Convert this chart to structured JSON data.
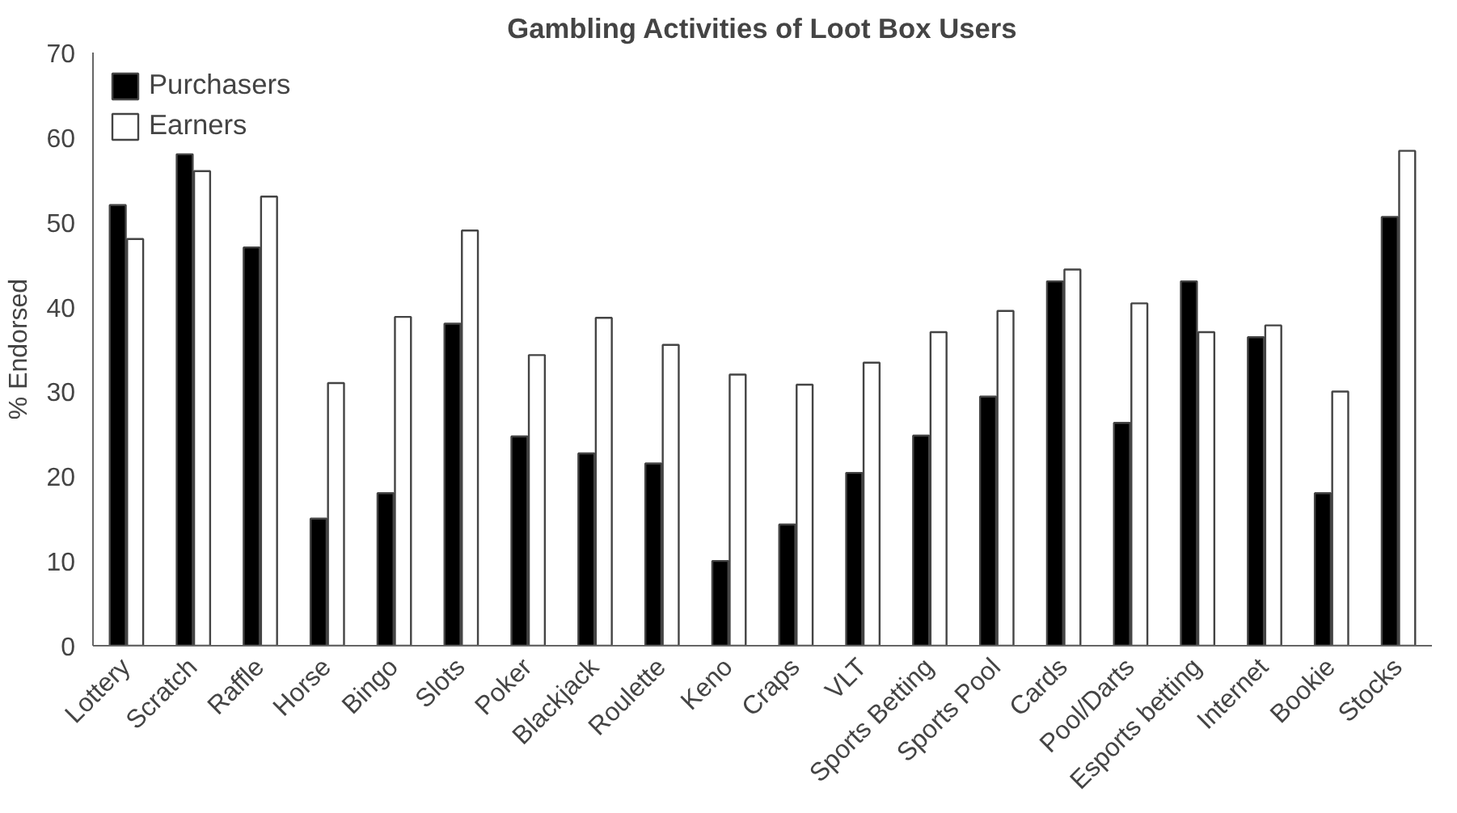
{
  "chart_data": {
    "type": "bar",
    "title": "Gambling Activities of Loot Box Users",
    "ylabel": "% Endorsed",
    "categories": [
      "Lottery",
      "Scratch",
      "Raffle",
      "Horse",
      "Bingo",
      "Slots",
      "Poker",
      "Blackjack",
      "Roulette",
      "Keno",
      "Craps",
      "VLT",
      "Sports Betting",
      "Sports Pool",
      "Cards",
      "Pool/Darts",
      "Esports betting",
      "Internet",
      "Bookie",
      "Stocks"
    ],
    "series": [
      {
        "name": "Purchasers",
        "color": "#000000",
        "values": [
          52,
          58,
          47,
          15,
          18,
          38,
          24.7,
          22.7,
          21.5,
          10,
          14.3,
          20.4,
          24.8,
          29.4,
          43,
          26.3,
          43,
          36.4,
          18,
          50.6
        ]
      },
      {
        "name": "Earners",
        "color": "#ffffff",
        "values": [
          48,
          56,
          53,
          31,
          38.8,
          49,
          34.3,
          38.7,
          35.5,
          32,
          30.8,
          33.4,
          37,
          39.5,
          44.4,
          40.4,
          37,
          37.8,
          30,
          58.4
        ]
      }
    ],
    "ylim": [
      0,
      70
    ],
    "yticks": [
      0,
      10,
      20,
      30,
      40,
      50,
      60,
      70
    ],
    "grid": false,
    "legend": "top left"
  }
}
